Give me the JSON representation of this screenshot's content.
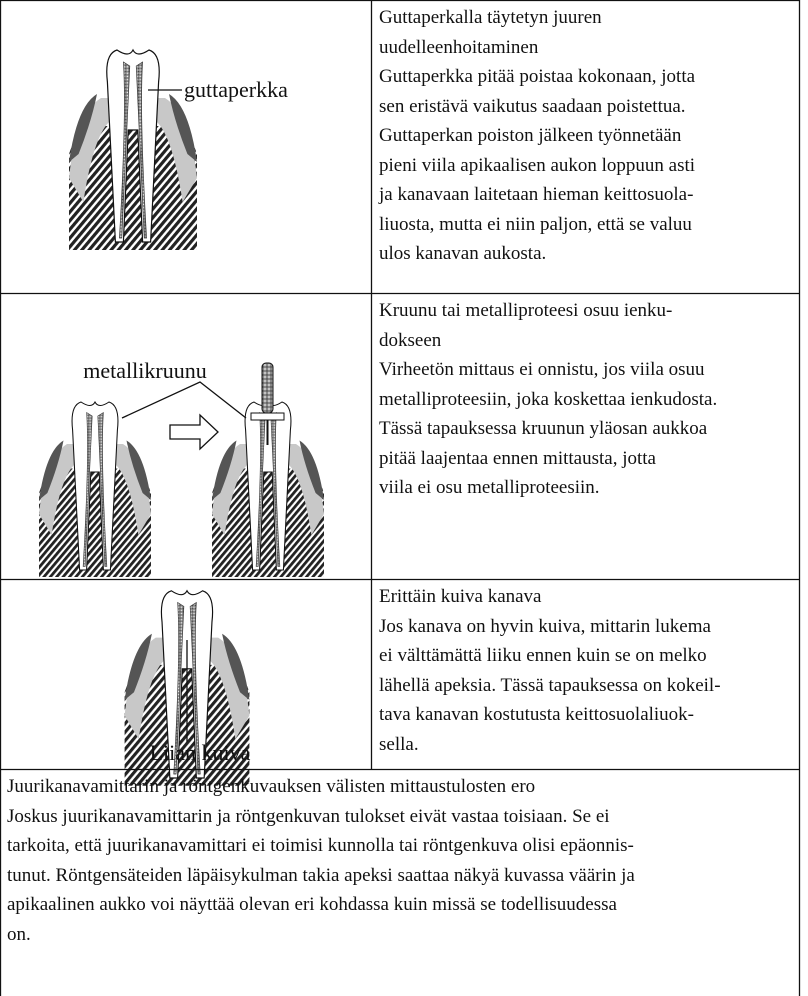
{
  "rows": [
    {
      "label": "guttaperkka",
      "title": [
        "Guttaperkalla täytetyn juuren",
        "uudelleenhoitaminen"
      ],
      "body": [
        "Guttaperkka pitää poistaa kokonaan, jotta",
        "sen eristävä vaikutus saadaan poistettua.",
        "Guttaperkan poiston jälkeen työnnetään",
        "pieni viila apikaalisen aukon loppuun asti",
        "ja kanavaan laitetaan hieman keittosuola-",
        "liuosta, mutta ei niin paljon, että se valuu",
        "ulos kanavan aukosta."
      ]
    },
    {
      "label": "metallikruunu",
      "title": [
        "Kruunu tai metalliproteesi osuu ienku-",
        "dokseen"
      ],
      "body": [
        "Virheetön mittaus ei onnistu, jos viila osuu",
        "metalliproteesiin, joka koskettaa ienkudosta.",
        "Tässä tapauksessa kruunun yläosan aukkoa",
        "pitää laajentaa ennen mittausta, jotta",
        "viila ei osu metalliproteesiin."
      ]
    },
    {
      "label": "Liian kuiva",
      "title": [
        "Erittäin kuiva kanava"
      ],
      "body": [
        "Jos kanava on hyvin kuiva, mittarin lukema",
        "ei välttämättä liiku ennen kuin se on melko",
        "lähellä apeksia. Tässä tapauksessa on kokeil-",
        "tava kanavan kostutusta keittosuolaliuok-",
        "sella."
      ]
    }
  ],
  "footer": {
    "title": "Juurikanavamittarin ja röntgenkuvauksen välisten mittaustulosten ero",
    "body": [
      "Joskus juurikanavamittarin ja röntgenkuvan tulokset eivät vastaa toisiaan. Se ei",
      "tarkoita, että juurikanavamittari ei toimisi kunnolla tai röntgenkuva olisi epäonnis-",
      "tunut. Röntgensäteiden läpäisykulman takia apeksi saattaa näkyä kuvassa väärin ja",
      "apikaalinen aukko voi näyttää olevan eri kohdassa kuin missä se todellisuudessa",
      "on."
    ]
  }
}
